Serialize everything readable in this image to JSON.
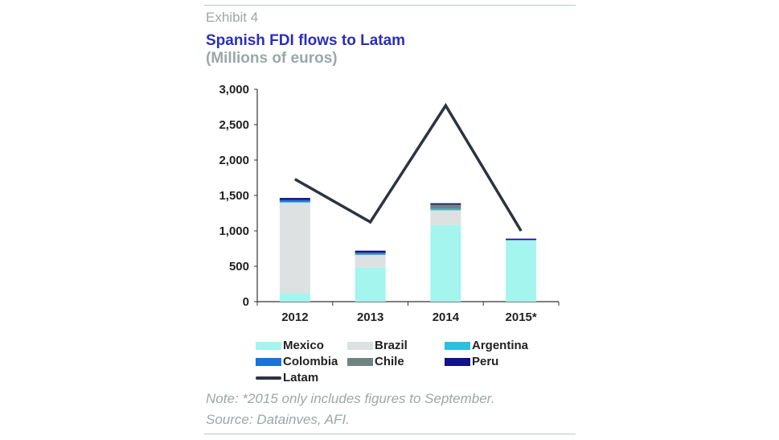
{
  "header": {
    "exhibit": "Exhibit 4",
    "title": "Spanish FDI flows to Latam",
    "subtitle": "(Millions of euros)"
  },
  "chart_data": {
    "type": "bar",
    "stacked": true,
    "title": "Spanish FDI flows to Latam",
    "ylabel": "Millions of euros",
    "xlabel": "",
    "categories": [
      "2012",
      "2013",
      "2014",
      "2015*"
    ],
    "ylim": [
      0,
      3000
    ],
    "yticks": [
      0,
      500,
      1000,
      1500,
      2000,
      2500,
      3000
    ],
    "ytick_labels": [
      "0",
      "500",
      "1,000",
      "1,500",
      "2,000",
      "2,500",
      "3,000"
    ],
    "grid": false,
    "legend_position": "bottom",
    "series": [
      {
        "name": "Mexico",
        "kind": "bar",
        "color": "#a3f5ee",
        "values": [
          120,
          480,
          1080,
          870
        ]
      },
      {
        "name": "Brazil",
        "kind": "bar",
        "color": "#dde1e2",
        "values": [
          1280,
          180,
          210,
          0
        ]
      },
      {
        "name": "Argentina",
        "kind": "bar",
        "color": "#2cbfe0",
        "values": [
          10,
          10,
          20,
          0
        ]
      },
      {
        "name": "Colombia",
        "kind": "bar",
        "color": "#1a73d9",
        "values": [
          25,
          10,
          0,
          0
        ]
      },
      {
        "name": "Chile",
        "kind": "bar",
        "color": "#6e8480",
        "values": [
          0,
          10,
          60,
          0
        ]
      },
      {
        "name": "Peru",
        "kind": "bar",
        "color": "#12128a",
        "values": [
          30,
          30,
          20,
          20
        ]
      },
      {
        "name": "Latam",
        "kind": "line",
        "color": "#2b3440",
        "values": [
          1730,
          1125,
          2770,
          1000
        ]
      }
    ]
  },
  "footer": {
    "note": "Note: *2015 only includes figures to September.",
    "source": "Source: Datainves, AFI."
  }
}
